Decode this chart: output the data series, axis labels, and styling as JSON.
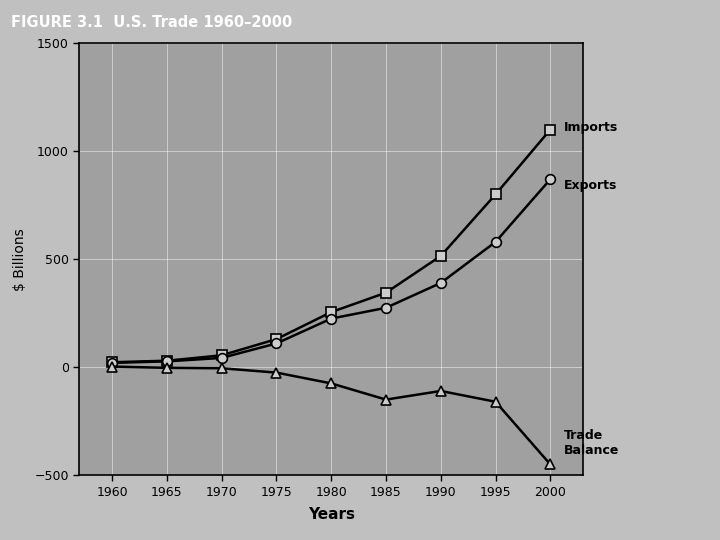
{
  "years": [
    1960,
    1965,
    1970,
    1975,
    1980,
    1985,
    1990,
    1995,
    2000
  ],
  "imports": [
    23,
    30,
    55,
    130,
    255,
    345,
    515,
    800,
    1100
  ],
  "exports": [
    20,
    27,
    43,
    110,
    225,
    275,
    390,
    580,
    870
  ],
  "trade_balance": [
    3,
    -3,
    -5,
    -25,
    -75,
    -150,
    -110,
    -160,
    -450
  ],
  "title": "FIGURE 3.1  U.S. Trade 1960–2000",
  "xlabel": "Years",
  "ylabel": "$ Billions",
  "ylim": [
    -500,
    1500
  ],
  "xlim": [
    1957,
    2003
  ],
  "yticks": [
    -500,
    0,
    500,
    1000,
    1500
  ],
  "xticks": [
    1960,
    1965,
    1970,
    1975,
    1980,
    1985,
    1990,
    1995,
    2000
  ],
  "title_bg_color": "#1a1a1a",
  "title_text_color": "#ffffff",
  "plot_bg_color": "#a0a0a0",
  "figure_bg_color": "#c0c0c0",
  "line_color": "#000000",
  "label_imports": "Imports",
  "label_exports": "Exports",
  "label_trade_balance": "Trade\nBalance"
}
